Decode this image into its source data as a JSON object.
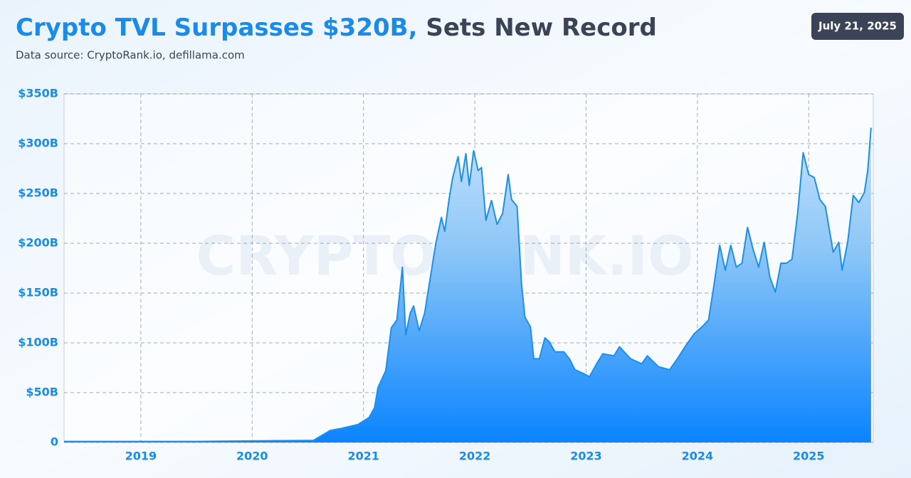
{
  "chart_data": {
    "type": "area",
    "title_highlight": "Crypto TVL Surpasses $320B,",
    "title_rest": "Sets New Record",
    "subtitle": "Data source: CryptoRank.io, defillama.com",
    "date_badge": "July 21, 2025",
    "watermark": "CRYPTORANK.IO",
    "color": "#1e8fe8",
    "grid": true,
    "x": [
      2018.31,
      2019.0,
      2019.5,
      2020.0,
      2020.5,
      2020.55,
      2020.7,
      2020.8,
      2020.95,
      2021.05,
      2021.1,
      2021.13,
      2021.2,
      2021.25,
      2021.3,
      2021.35,
      2021.38,
      2021.42,
      2021.45,
      2021.5,
      2021.55,
      2021.6,
      2021.65,
      2021.7,
      2021.73,
      2021.77,
      2021.8,
      2021.85,
      2021.88,
      2021.92,
      2021.95,
      2021.99,
      2022.03,
      2022.06,
      2022.1,
      2022.15,
      2022.2,
      2022.25,
      2022.3,
      2022.33,
      2022.38,
      2022.42,
      2022.45,
      2022.5,
      2022.53,
      2022.58,
      2022.63,
      2022.67,
      2022.72,
      2022.8,
      2022.85,
      2022.9,
      2022.98,
      2023.03,
      2023.1,
      2023.15,
      2023.25,
      2023.3,
      2023.4,
      2023.5,
      2023.55,
      2023.65,
      2023.75,
      2023.82,
      2023.9,
      2023.97,
      2024.05,
      2024.1,
      2024.15,
      2024.2,
      2024.25,
      2024.3,
      2024.35,
      2024.4,
      2024.45,
      2024.5,
      2024.55,
      2024.6,
      2024.65,
      2024.7,
      2024.75,
      2024.8,
      2024.85,
      2024.9,
      2024.95,
      2025.0,
      2025.05,
      2025.1,
      2025.15,
      2025.22,
      2025.27,
      2025.3,
      2025.35,
      2025.4,
      2025.45,
      2025.5,
      2025.53,
      2025.56
    ],
    "y": [
      1,
      1,
      1,
      1.5,
      2,
      2,
      12,
      14,
      18,
      25,
      35,
      55,
      72,
      115,
      123,
      176,
      108,
      130,
      137,
      112,
      130,
      165,
      200,
      226,
      212,
      245,
      265,
      287,
      262,
      290,
      258,
      293,
      273,
      276,
      223,
      243,
      219,
      230,
      269,
      244,
      237,
      159,
      126,
      116,
      84,
      84,
      105,
      101,
      91,
      91,
      84,
      73,
      69,
      66,
      80,
      89,
      87,
      96,
      84,
      79,
      87,
      76,
      73,
      84,
      98,
      109,
      117,
      123,
      159,
      198,
      173,
      198,
      176,
      180,
      216,
      194,
      176,
      201,
      166,
      151,
      180,
      180,
      184,
      230,
      291,
      269,
      266,
      244,
      237,
      191,
      201,
      173,
      201,
      248,
      241,
      251,
      273,
      316
    ],
    "xlim": [
      2018.31,
      2025.58
    ],
    "xticks": [
      2019,
      2020,
      2021,
      2022,
      2023,
      2024,
      2025
    ],
    "ylim": [
      0,
      350
    ],
    "yticks": [
      0,
      {
        "value": 50,
        "label": "$50B"
      },
      {
        "value": 100,
        "label": "$100B"
      },
      {
        "value": 150,
        "label": "$150B"
      },
      {
        "value": 200,
        "label": "$200B"
      },
      {
        "value": 250,
        "label": "$250B"
      },
      {
        "value": 300,
        "label": "$300B"
      },
      {
        "value": 350,
        "label": "$350B"
      }
    ]
  }
}
